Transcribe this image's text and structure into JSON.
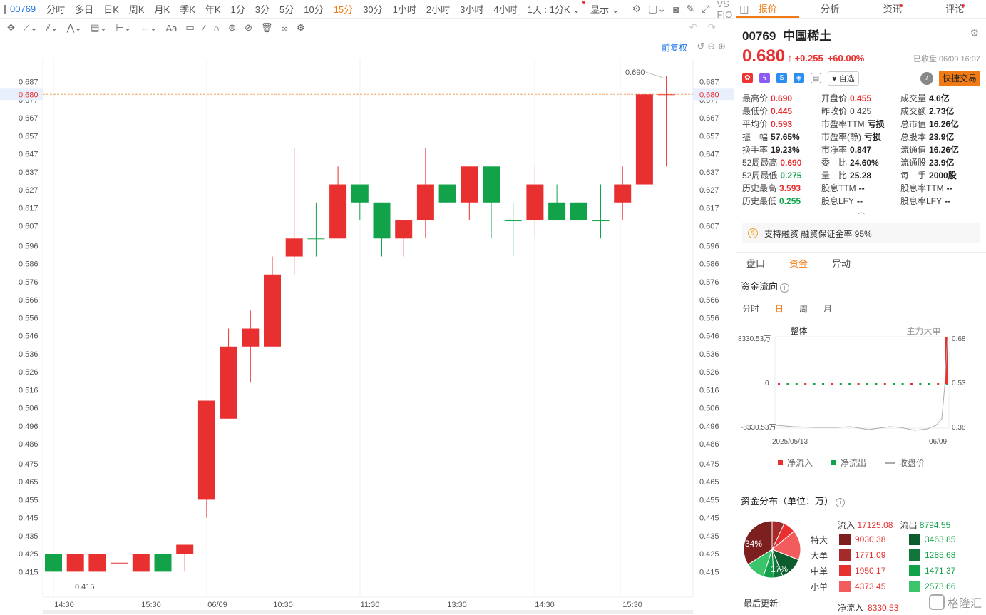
{
  "topbar": {
    "code": "00769",
    "intervals": [
      {
        "label": "分时"
      },
      {
        "label": "多日"
      },
      {
        "label": "日K"
      },
      {
        "label": "周K"
      },
      {
        "label": "月K"
      },
      {
        "label": "季K"
      },
      {
        "label": "年K"
      },
      {
        "label": "1分"
      },
      {
        "label": "3分"
      },
      {
        "label": "5分"
      },
      {
        "label": "10分"
      },
      {
        "label": "15分",
        "active": true
      },
      {
        "label": "30分"
      },
      {
        "label": "1小时"
      },
      {
        "label": "2小时"
      },
      {
        "label": "3小时"
      },
      {
        "label": "4小时"
      }
    ],
    "kline_select": "1天 : 1分K",
    "display": "显示",
    "vs_label": "VS FIO"
  },
  "chart": {
    "fuquan": "前复权",
    "price_ticks": [
      "0.687",
      "0.680",
      "0.677",
      "0.667",
      "0.657",
      "0.647",
      "0.637",
      "0.627",
      "0.617",
      "0.607",
      "0.596",
      "0.586",
      "0.576",
      "0.566",
      "0.556",
      "0.546",
      "0.536",
      "0.526",
      "0.516",
      "0.506",
      "0.496",
      "0.486",
      "0.475",
      "0.465",
      "0.455",
      "0.445",
      "0.435",
      "0.425",
      "0.415"
    ],
    "current_price_label": "0.680",
    "high_label": "0.690",
    "low_label": "0.415",
    "time_labels": [
      "14:30",
      "15:30",
      "06/09",
      "10:30",
      "11:30",
      "13:30",
      "14:30",
      "15:30"
    ]
  },
  "chart_data": {
    "type": "candlestick",
    "title": "",
    "ylim": [
      0.41,
      0.692
    ],
    "reference_line": 0.68,
    "candles": [
      {
        "o": 0.425,
        "c": 0.415,
        "h": 0.425,
        "l": 0.415
      },
      {
        "o": 0.415,
        "c": 0.425,
        "h": 0.425,
        "l": 0.415
      },
      {
        "o": 0.415,
        "c": 0.425,
        "h": 0.425,
        "l": 0.415
      },
      {
        "o": 0.42,
        "c": 0.42,
        "h": 0.42,
        "l": 0.42
      },
      {
        "o": 0.415,
        "c": 0.425,
        "h": 0.425,
        "l": 0.415
      },
      {
        "o": 0.425,
        "c": 0.415,
        "h": 0.425,
        "l": 0.415
      },
      {
        "o": 0.425,
        "c": 0.43,
        "h": 0.43,
        "l": 0.415
      },
      {
        "o": 0.455,
        "c": 0.51,
        "h": 0.51,
        "l": 0.445
      },
      {
        "o": 0.5,
        "c": 0.54,
        "h": 0.55,
        "l": 0.5
      },
      {
        "o": 0.54,
        "c": 0.55,
        "h": 0.56,
        "l": 0.52
      },
      {
        "o": 0.54,
        "c": 0.58,
        "h": 0.59,
        "l": 0.54
      },
      {
        "o": 0.59,
        "c": 0.6,
        "h": 0.65,
        "l": 0.58
      },
      {
        "o": 0.6,
        "c": 0.6,
        "h": 0.62,
        "l": 0.59
      },
      {
        "o": 0.6,
        "c": 0.63,
        "h": 0.64,
        "l": 0.6
      },
      {
        "o": 0.63,
        "c": 0.62,
        "h": 0.63,
        "l": 0.61
      },
      {
        "o": 0.62,
        "c": 0.6,
        "h": 0.62,
        "l": 0.59
      },
      {
        "o": 0.6,
        "c": 0.61,
        "h": 0.61,
        "l": 0.59
      },
      {
        "o": 0.61,
        "c": 0.63,
        "h": 0.65,
        "l": 0.6
      },
      {
        "o": 0.63,
        "c": 0.62,
        "h": 0.63,
        "l": 0.62
      },
      {
        "o": 0.62,
        "c": 0.64,
        "h": 0.64,
        "l": 0.61
      },
      {
        "o": 0.64,
        "c": 0.62,
        "h": 0.64,
        "l": 0.6
      },
      {
        "o": 0.61,
        "c": 0.61,
        "h": 0.62,
        "l": 0.59
      },
      {
        "o": 0.61,
        "c": 0.63,
        "h": 0.64,
        "l": 0.6
      },
      {
        "o": 0.62,
        "c": 0.61,
        "h": 0.63,
        "l": 0.61
      },
      {
        "o": 0.62,
        "c": 0.61,
        "h": 0.62,
        "l": 0.61
      },
      {
        "o": 0.61,
        "c": 0.61,
        "h": 0.63,
        "l": 0.6
      },
      {
        "o": 0.62,
        "c": 0.63,
        "h": 0.64,
        "l": 0.61
      },
      {
        "o": 0.63,
        "c": 0.68,
        "h": 0.68,
        "l": 0.63
      },
      {
        "o": 0.68,
        "c": 0.68,
        "h": 0.69,
        "l": 0.64
      }
    ]
  },
  "panel": {
    "tabs": [
      {
        "label": "报价",
        "active": true
      },
      {
        "label": "分析"
      },
      {
        "label": "资讯",
        "dot": true
      },
      {
        "label": "评论",
        "dot": true
      }
    ],
    "code": "00769",
    "name": "中国稀土",
    "price": "0.680",
    "change": "+0.255",
    "change_pct": "+60.00%",
    "closed": "已收盘 06/09 16:07",
    "zixuan": "自选",
    "quick_trade": "快捷交易",
    "stats": [
      {
        "k": "最高价",
        "v": "0.690",
        "c": "red"
      },
      {
        "k": "开盘价",
        "v": "0.455",
        "c": "red"
      },
      {
        "k": "成交量",
        "v": "4.6亿",
        "c": "dark"
      },
      {
        "k": "最低价",
        "v": "0.445",
        "c": "red"
      },
      {
        "k": "昨收价",
        "v": "0.425",
        "c": "plain"
      },
      {
        "k": "成交额",
        "v": "2.73亿",
        "c": "dark"
      },
      {
        "k": "平均价",
        "v": "0.593",
        "c": "red"
      },
      {
        "k": "市盈率TTM",
        "v": "亏损",
        "c": "dark"
      },
      {
        "k": "总市值",
        "v": "16.26亿",
        "c": "dark"
      },
      {
        "k": "振　幅",
        "v": "57.65%",
        "c": "dark"
      },
      {
        "k": "市盈率(静)",
        "v": "亏损",
        "c": "dark"
      },
      {
        "k": "总股本",
        "v": "23.9亿",
        "c": "dark"
      },
      {
        "k": "换手率",
        "v": "19.23%",
        "c": "dark"
      },
      {
        "k": "市净率",
        "v": "0.847",
        "c": "dark"
      },
      {
        "k": "流通值",
        "v": "16.26亿",
        "c": "dark"
      },
      {
        "k": "52周最高",
        "v": "0.690",
        "c": "red"
      },
      {
        "k": "委　比",
        "v": "24.60%",
        "c": "dark"
      },
      {
        "k": "流通股",
        "v": "23.9亿",
        "c": "dark"
      },
      {
        "k": "52周最低",
        "v": "0.275",
        "c": "green"
      },
      {
        "k": "量　比",
        "v": "25.28",
        "c": "dark"
      },
      {
        "k": "每　手",
        "v": "2000股",
        "c": "dark"
      },
      {
        "k": "历史最高",
        "v": "3.593",
        "c": "red"
      },
      {
        "k": "股息TTM",
        "v": "--",
        "c": "dark"
      },
      {
        "k": "股息率TTM",
        "v": "--",
        "c": "dark"
      },
      {
        "k": "历史最低",
        "v": "0.255",
        "c": "green"
      },
      {
        "k": "股息LFY",
        "v": "--",
        "c": "dark"
      },
      {
        "k": "股息率LFY",
        "v": "--",
        "c": "dark"
      }
    ],
    "margin_text": "支持融资 融资保证金率 95%",
    "subtabs": [
      {
        "label": "盘口"
      },
      {
        "label": "资金",
        "active": true
      },
      {
        "label": "异动"
      }
    ],
    "flow_title": "资金流向",
    "periods": [
      {
        "label": "分时"
      },
      {
        "label": "日",
        "active": true
      },
      {
        "label": "周"
      },
      {
        "label": "月"
      }
    ],
    "flow_tabs": [
      {
        "label": "整体",
        "active": true
      },
      {
        "label": "主力大单"
      }
    ],
    "mini_chart": {
      "y_top": "8330.53万",
      "y_mid": "0",
      "y_bot": "-8330.53万",
      "r_top": "0.68",
      "r_mid": "0.53",
      "r_bot": "0.38",
      "x_start": "2025/05/13",
      "x_end": "06/09"
    },
    "legend": {
      "in": "净流入",
      "out": "净流出",
      "close": "收盘价"
    },
    "dist_title": "资金分布（单位：万）",
    "dist": {
      "inflow_label": "流入",
      "inflow_total": "17125.08",
      "outflow_label": "流出",
      "outflow_total": "8794.55",
      "rows": [
        {
          "label": "特大",
          "in": "9030.38",
          "out": "3463.85"
        },
        {
          "label": "大单",
          "in": "1771.09",
          "out": "1285.68"
        },
        {
          "label": "中单",
          "in": "1950.17",
          "out": "1471.37"
        },
        {
          "label": "小单",
          "in": "4373.45",
          "out": "2573.66"
        }
      ],
      "pie_big_pct": "34%",
      "pie_small_pct": "17%"
    },
    "update_label": "最后更新:",
    "net_in_label": "净流入",
    "net_in_value": "8330.53",
    "watermark": "格隆汇"
  }
}
